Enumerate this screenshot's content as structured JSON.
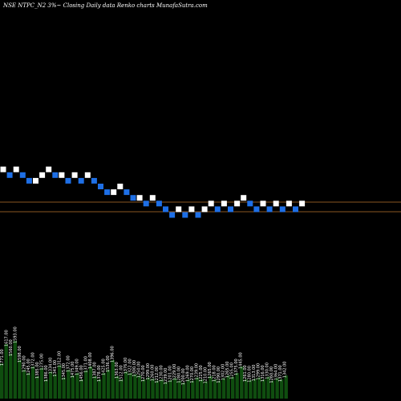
{
  "chart_data": {
    "type": "renko",
    "title": "NSE NTPC_N2  3%~  Closing Daily data  Renko  charts MunafaSutra.com",
    "colors": {
      "background": "#000000",
      "up_brick": "#ffffff",
      "down_brick": "#1e6fe6",
      "level_line": "#b8732e",
      "volume": "#0f4d0f"
    },
    "bricks": [
      {
        "col": 0,
        "level": 12,
        "dir": "up"
      },
      {
        "col": 1,
        "level": 11,
        "dir": "down"
      },
      {
        "col": 2,
        "level": 12,
        "dir": "up"
      },
      {
        "col": 3,
        "level": 11,
        "dir": "down"
      },
      {
        "col": 4,
        "level": 10,
        "dir": "down"
      },
      {
        "col": 5,
        "level": 10,
        "dir": "up"
      },
      {
        "col": 6,
        "level": 11,
        "dir": "up"
      },
      {
        "col": 7,
        "level": 12,
        "dir": "up"
      },
      {
        "col": 8,
        "level": 11,
        "dir": "down"
      },
      {
        "col": 9,
        "level": 11,
        "dir": "up"
      },
      {
        "col": 10,
        "level": 10,
        "dir": "down"
      },
      {
        "col": 11,
        "level": 11,
        "dir": "up"
      },
      {
        "col": 12,
        "level": 10,
        "dir": "down"
      },
      {
        "col": 13,
        "level": 11,
        "dir": "up"
      },
      {
        "col": 14,
        "level": 10,
        "dir": "down"
      },
      {
        "col": 15,
        "level": 9,
        "dir": "down"
      },
      {
        "col": 16,
        "level": 8,
        "dir": "down"
      },
      {
        "col": 17,
        "level": 8,
        "dir": "up"
      },
      {
        "col": 18,
        "level": 9,
        "dir": "up"
      },
      {
        "col": 19,
        "level": 8,
        "dir": "down"
      },
      {
        "col": 20,
        "level": 7,
        "dir": "down"
      },
      {
        "col": 21,
        "level": 7,
        "dir": "up"
      },
      {
        "col": 22,
        "level": 6,
        "dir": "down"
      },
      {
        "col": 23,
        "level": 7,
        "dir": "up"
      },
      {
        "col": 24,
        "level": 6,
        "dir": "down"
      },
      {
        "col": 25,
        "level": 5,
        "dir": "down"
      },
      {
        "col": 26,
        "level": 4,
        "dir": "down"
      },
      {
        "col": 27,
        "level": 5,
        "dir": "up"
      },
      {
        "col": 28,
        "level": 4,
        "dir": "down"
      },
      {
        "col": 29,
        "level": 5,
        "dir": "up"
      },
      {
        "col": 30,
        "level": 4,
        "dir": "down"
      },
      {
        "col": 31,
        "level": 5,
        "dir": "up"
      },
      {
        "col": 32,
        "level": 6,
        "dir": "up"
      },
      {
        "col": 33,
        "level": 5,
        "dir": "down"
      },
      {
        "col": 34,
        "level": 6,
        "dir": "up"
      },
      {
        "col": 35,
        "level": 5,
        "dir": "down"
      },
      {
        "col": 36,
        "level": 6,
        "dir": "up"
      },
      {
        "col": 37,
        "level": 7,
        "dir": "up"
      },
      {
        "col": 38,
        "level": 6,
        "dir": "down"
      },
      {
        "col": 39,
        "level": 5,
        "dir": "down"
      },
      {
        "col": 40,
        "level": 6,
        "dir": "up"
      },
      {
        "col": 41,
        "level": 5,
        "dir": "down"
      },
      {
        "col": 42,
        "level": 6,
        "dir": "up"
      },
      {
        "col": 43,
        "level": 5,
        "dir": "down"
      },
      {
        "col": 44,
        "level": 6,
        "dir": "up"
      },
      {
        "col": 45,
        "level": 5,
        "dir": "down"
      },
      {
        "col": 46,
        "level": 6,
        "dir": "up"
      }
    ],
    "volume_labels": [
      "1771.00",
      "1617.00",
      "1560.00",
      "1593.00",
      "1598.00",
      "1290.00",
      "1245.00",
      "1372.00",
      "1385.00",
      "1275.00",
      "1386.00",
      "1334.00",
      "1341.00",
      "1312.00",
      "1345.00",
      "1372.00",
      "1475.00",
      "1349.00",
      "1456.00",
      "1371.00",
      "1408.00",
      "1387.00",
      "1378.00",
      "1425.00",
      "1536.00",
      "1396.00",
      "1363.00",
      "1512.00",
      "1376.00",
      "1322.00",
      "1300.00",
      "1250.00",
      "1270.00",
      "1299.00",
      "1260.00",
      "1212.00",
      "1230.00",
      "1239.00",
      "1201.00",
      "1229.00",
      "1280.00",
      "1200.00",
      "1269.00",
      "1270.00",
      "1239.00",
      "1225.00",
      "1210.00",
      "1265.00",
      "1218.00",
      "1290.00",
      "1302.00",
      "1265.00",
      "1255.00",
      "1375.00",
      "1445.00",
      "1261.00",
      "1280.00",
      "1313.00",
      "1299.00",
      "1316.00",
      "1330.00",
      "1260.00",
      "1364.00",
      "1371.00",
      "1342.00"
    ],
    "volumes": [
      0.55,
      0.85,
      0.7,
      0.9,
      0.6,
      0.45,
      0.4,
      0.5,
      0.35,
      0.48,
      0.3,
      0.42,
      0.38,
      0.52,
      0.33,
      0.45,
      0.36,
      0.4,
      0.3,
      0.44,
      0.5,
      0.35,
      0.3,
      0.4,
      0.45,
      0.6,
      0.35,
      0.3,
      0.42,
      0.4,
      0.38,
      0.36,
      0.3,
      0.33,
      0.31,
      0.28,
      0.3,
      0.26,
      0.29,
      0.32,
      0.28,
      0.25,
      0.3,
      0.28,
      0.33,
      0.3,
      0.27,
      0.35,
      0.3,
      0.28,
      0.32,
      0.36,
      0.34,
      0.4,
      0.5,
      0.3,
      0.29,
      0.31,
      0.33,
      0.3,
      0.34,
      0.28,
      0.32,
      0.3,
      0.36
    ]
  }
}
